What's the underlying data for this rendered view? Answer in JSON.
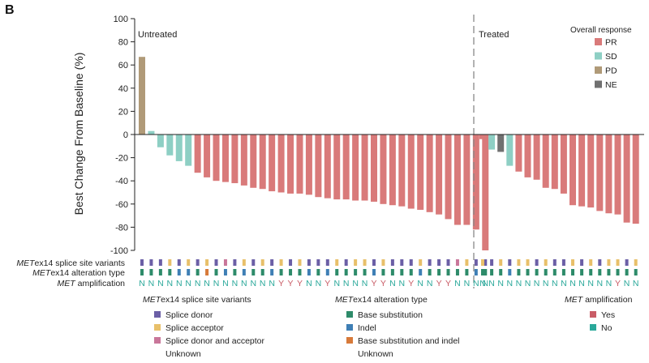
{
  "panel_label": "B",
  "chart_data": {
    "type": "bar",
    "ylabel": "Best Change From Baseline (%)",
    "ylim": [
      -100,
      100
    ],
    "yticks": [
      100,
      80,
      60,
      40,
      20,
      0,
      -20,
      -40,
      -60,
      -80,
      -100
    ],
    "groups": [
      {
        "name": "Untreated",
        "values": [
          67,
          3,
          -11,
          -18,
          -23,
          -27,
          -33,
          -37,
          -40,
          -41,
          -42,
          -44,
          -46,
          -47,
          -49,
          -50,
          -51,
          -51,
          -52,
          -54,
          -55,
          -56,
          -56,
          -57,
          -57,
          -58,
          -60,
          -61,
          -62,
          -64,
          -65,
          -67,
          -69,
          -73,
          -78,
          -78,
          -82,
          -100
        ],
        "response": [
          "PD",
          "SD",
          "SD",
          "SD",
          "SD",
          "SD",
          "PR",
          "PR",
          "PR",
          "PR",
          "PR",
          "PR",
          "PR",
          "PR",
          "PR",
          "PR",
          "PR",
          "PR",
          "PR",
          "PR",
          "PR",
          "PR",
          "PR",
          "PR",
          "PR",
          "PR",
          "PR",
          "PR",
          "PR",
          "PR",
          "PR",
          "PR",
          "PR",
          "PR",
          "PR",
          "PR",
          "PR",
          "PR"
        ],
        "splice": [
          "D",
          "D",
          "D",
          "A",
          "D",
          "A",
          "D",
          "A",
          "D",
          "DA",
          "D",
          "A",
          "D",
          "A",
          "D",
          "A",
          "D",
          "A",
          "D",
          "D",
          "D",
          "A",
          "D",
          "A",
          "A",
          "D",
          "A",
          "D",
          "D",
          "D",
          "A",
          "D",
          "D",
          "D",
          "DA",
          "A",
          "D",
          "D"
        ],
        "alteration": [
          "BS",
          "BS",
          "BS",
          "BS",
          "IN",
          "IN",
          "BS",
          "BI",
          "BS",
          "IN",
          "BS",
          "IN",
          "BS",
          "BS",
          "IN",
          "BS",
          "BS",
          "BS",
          "IN",
          "BS",
          "IN",
          "BS",
          "BS",
          "BS",
          "BS",
          "IN",
          "BS",
          "BS",
          "BS",
          "BS",
          "IN",
          "BS",
          "BS",
          "BS",
          "BS",
          "BS",
          "IN",
          "BS"
        ],
        "amplification": [
          "N",
          "N",
          "N",
          "N",
          "N",
          "N",
          "N",
          "N",
          "N",
          "N",
          "N",
          "N",
          "N",
          "N",
          "N",
          "Y",
          "Y",
          "Y",
          "N",
          "N",
          "Y",
          "N",
          "N",
          "N",
          "N",
          "Y",
          "Y",
          "N",
          "N",
          "Y",
          "N",
          "N",
          "Y",
          "Y",
          "N",
          "N",
          "N",
          "N"
        ]
      },
      {
        "name": "Treated",
        "values": [
          -4,
          -13,
          -15,
          -27,
          -32,
          -37,
          -39,
          -46,
          -47,
          -51,
          -61,
          -62,
          -63,
          -66,
          -68,
          -69,
          -76,
          -77
        ],
        "response": [
          "PR",
          "SD",
          "NE",
          "SD",
          "PR",
          "PR",
          "PR",
          "PR",
          "PR",
          "PR",
          "PR",
          "PR",
          "PR",
          "PR",
          "PR",
          "PR",
          "PR",
          "PR"
        ],
        "splice": [
          "A",
          "D",
          "A",
          "D",
          "A",
          "A",
          "D",
          "A",
          "D",
          "D",
          "A",
          "D",
          "A",
          "D",
          "A",
          "A",
          "D",
          "A"
        ],
        "alteration": [
          "BS",
          "BS",
          "BS",
          "IN",
          "BS",
          "BS",
          "BS",
          "BS",
          "BS",
          "BS",
          "BS",
          "BS",
          "BS",
          "BS",
          "BS",
          "BS",
          "BS",
          "BS"
        ],
        "amplification": [
          "N",
          "N",
          "N",
          "N",
          "N",
          "N",
          "N",
          "N",
          "N",
          "N",
          "N",
          "N",
          "N",
          "N",
          "N",
          "Y",
          "N",
          "N"
        ]
      }
    ],
    "response_legend": {
      "title": "Overall response",
      "items": [
        {
          "key": "PR",
          "label": "PR",
          "color": "#d97a7a"
        },
        {
          "key": "SD",
          "label": "SD",
          "color": "#8ecfc4"
        },
        {
          "key": "PD",
          "label": "PD",
          "color": "#b09a78"
        },
        {
          "key": "NE",
          "label": "NE",
          "color": "#707070"
        }
      ]
    },
    "track_labels": {
      "splice_italic": "MET",
      "splice_rest": "ex14 splice site variants",
      "alteration_italic": "MET",
      "alteration_rest": "ex14 alteration type",
      "amplification_italic": "MET",
      "amplification_rest": " amplification"
    }
  },
  "legends": {
    "splice": {
      "title_italic": "MET",
      "title_rest": "ex14 splice site variants",
      "items": [
        {
          "key": "D",
          "label": "Splice donor",
          "color": "#6b5fa6"
        },
        {
          "key": "A",
          "label": "Splice acceptor",
          "color": "#e8c06a"
        },
        {
          "key": "DA",
          "label": "Splice donor and acceptor",
          "color": "#c9769a"
        },
        {
          "key": "U",
          "label": "Unknown",
          "color": ""
        }
      ]
    },
    "alteration": {
      "title_italic": "MET",
      "title_rest": "ex14 alteration type",
      "items": [
        {
          "key": "BS",
          "label": "Base substitution",
          "color": "#2e8b6a"
        },
        {
          "key": "IN",
          "label": "Indel",
          "color": "#3f7fb5"
        },
        {
          "key": "BI",
          "label": "Base substitution and indel",
          "color": "#d77a3a"
        },
        {
          "key": "U",
          "label": "Unknown",
          "color": ""
        }
      ]
    },
    "amplification": {
      "title_italic": "MET",
      "title_rest": " amplification",
      "items": [
        {
          "key": "Y",
          "label": "Yes",
          "color": "#c95c66"
        },
        {
          "key": "N",
          "label": "No",
          "color": "#2aa89a"
        }
      ]
    }
  }
}
